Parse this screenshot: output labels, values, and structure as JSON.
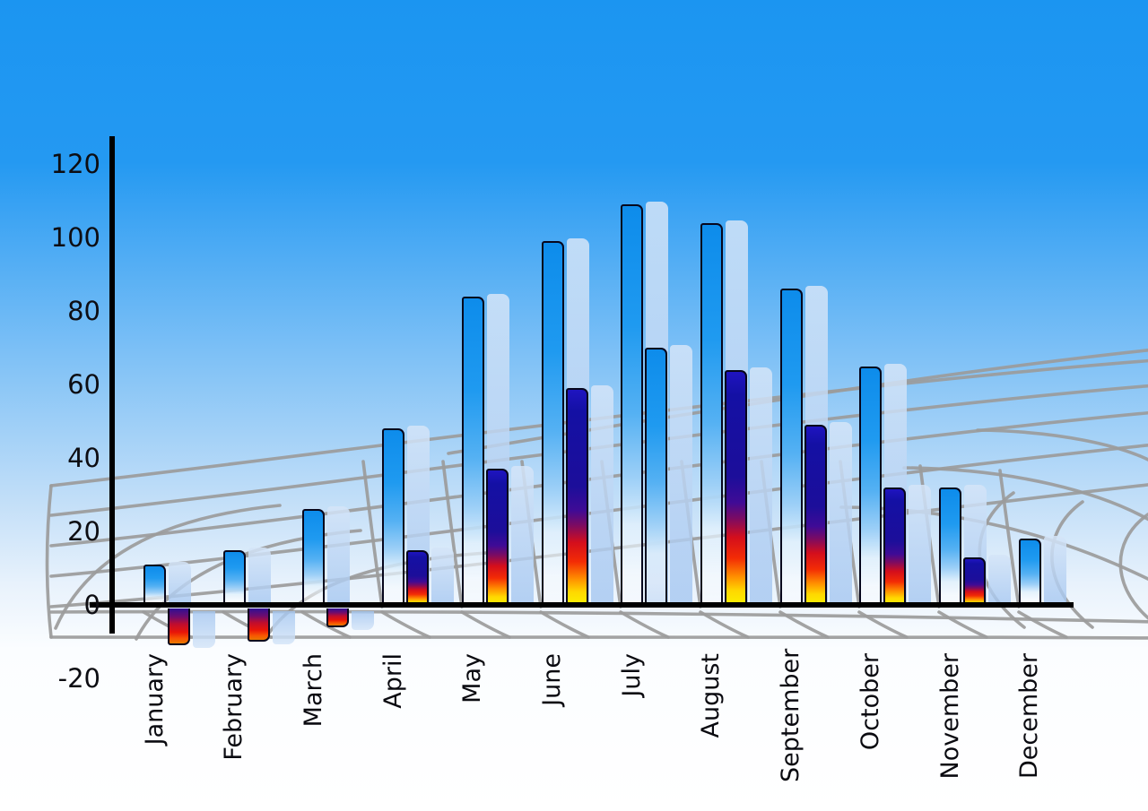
{
  "chart_data": {
    "type": "bar",
    "categories": [
      "January",
      "February",
      "March",
      "April",
      "May",
      "June",
      "July",
      "August",
      "September",
      "October",
      "November",
      "December"
    ],
    "series": [
      {
        "name": "primary-blue-bars",
        "values": [
          11,
          15,
          26,
          48,
          84,
          99,
          109,
          104,
          86,
          65,
          32,
          18
        ]
      },
      {
        "name": "secondary-bars",
        "values": [
          -10,
          -9,
          -5,
          15,
          37,
          59,
          70,
          64,
          49,
          32,
          13,
          null
        ],
        "bar_styles": [
          "fire",
          "fire",
          "fire",
          "fire",
          "fire",
          "fire",
          "blue",
          "fire",
          "fire",
          "fire",
          "fire",
          null
        ]
      }
    ],
    "y_axis": {
      "ticks": [
        120,
        100,
        80,
        60,
        40,
        20,
        0,
        -20
      ],
      "min": -20,
      "max": 120
    },
    "x_axis": {
      "tick_rotation_degrees": -90
    },
    "legend": "none",
    "grid": "curved-perspective-floor"
  },
  "colors": {
    "background_top": "#1b95f1",
    "background_bottom": "#ffffff",
    "bar_blue_top": "#0f8fec",
    "fire_navy": "#14109e",
    "fire_red": "#e8100f",
    "fire_yellow": "#f8ef00",
    "negative_red": "#e31508",
    "shadow_blue": "#a4c6f0",
    "grid_gray": "#9b9b9b",
    "axis_black": "#000000",
    "label_text": "#0a0a10"
  }
}
